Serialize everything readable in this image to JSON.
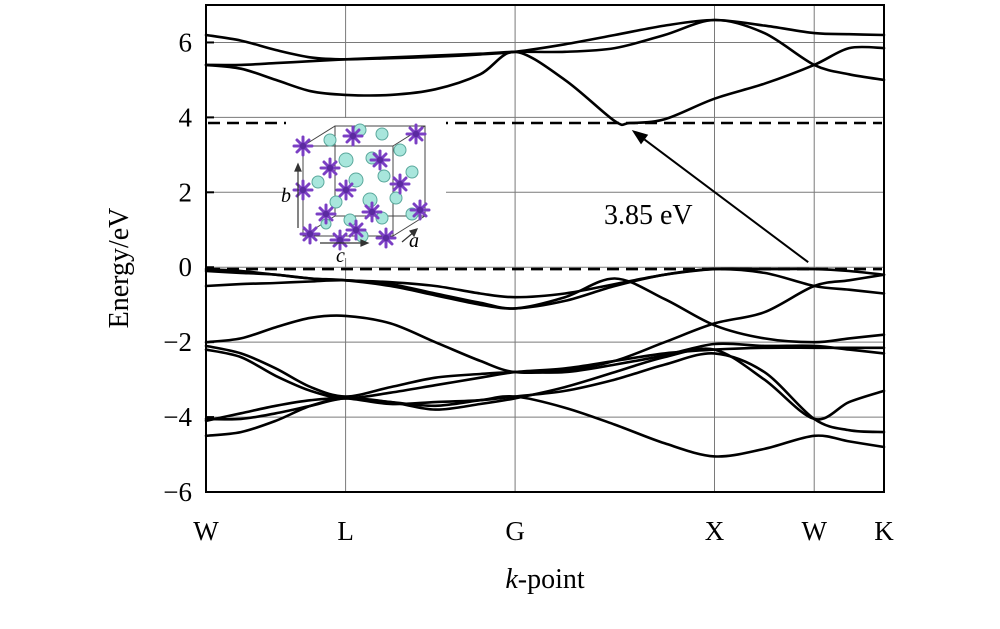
{
  "chart_data": {
    "type": "line",
    "xlabel_italic": "k",
    "xlabel_rest": "-point",
    "ylabel": "Energy/eV",
    "ylim": [
      -6,
      7
    ],
    "yticks": [
      -6,
      -4,
      -2,
      0,
      2,
      4,
      6
    ],
    "x_positions": [
      0,
      1.4,
      3.1,
      5.1,
      6.1,
      6.8
    ],
    "kpoint_labels": [
      "W",
      "L",
      "G",
      "X",
      "W",
      "K"
    ],
    "fermi_level": -0.05,
    "cbm_level": 3.85,
    "annotation": {
      "text": "3.85 eV",
      "from": [
        6.1,
        0
      ],
      "to": [
        4.25,
        3.85
      ]
    },
    "inset": {
      "axis_labels": [
        "b",
        "c",
        "a"
      ]
    },
    "series": [
      {
        "x": [
          0,
          0.35,
          0.7,
          1.05,
          1.4,
          1.85,
          2.3,
          2.75,
          3.1,
          3.6,
          4.1,
          4.6,
          5.1,
          5.6,
          6.1,
          6.45,
          6.8
        ],
        "y": [
          6.2,
          6.05,
          5.8,
          5.6,
          5.55,
          5.58,
          5.62,
          5.68,
          5.75,
          5.95,
          6.2,
          6.45,
          6.6,
          6.45,
          6.25,
          6.22,
          6.2
        ]
      },
      {
        "x": [
          0,
          0.35,
          0.7,
          1.05,
          1.4,
          1.85,
          2.3,
          2.75,
          3.1,
          3.6,
          4.1,
          4.6,
          5.1,
          5.6,
          6.1,
          6.45,
          6.8
        ],
        "y": [
          5.4,
          5.4,
          5.45,
          5.5,
          5.55,
          5.6,
          5.65,
          5.7,
          5.75,
          5.75,
          5.85,
          6.2,
          6.6,
          6.25,
          5.4,
          5.15,
          5.0
        ]
      },
      {
        "x": [
          0,
          0.35,
          0.7,
          1.05,
          1.4,
          1.85,
          2.3,
          2.75,
          3.1,
          3.6,
          4.1,
          4.25,
          4.6,
          5.1,
          5.6,
          6.1,
          6.45,
          6.8
        ],
        "y": [
          5.4,
          5.3,
          5.0,
          4.7,
          4.6,
          4.6,
          4.75,
          5.15,
          5.75,
          5.0,
          3.9,
          3.85,
          3.95,
          4.5,
          4.9,
          5.4,
          5.85,
          5.85
        ]
      },
      {
        "x": [
          0,
          0.35,
          0.7,
          1.05,
          1.4,
          1.85,
          2.3,
          2.75,
          3.1,
          3.6,
          4.1,
          4.6,
          5.1,
          5.6,
          6.1,
          6.45,
          6.8
        ],
        "y": [
          -0.05,
          -0.1,
          -0.2,
          -0.3,
          -0.35,
          -0.4,
          -0.5,
          -0.7,
          -0.8,
          -0.7,
          -0.45,
          -0.2,
          -0.05,
          -0.05,
          -0.05,
          -0.1,
          -0.2
        ]
      },
      {
        "x": [
          0,
          0.35,
          0.7,
          1.05,
          1.4,
          1.85,
          2.3,
          2.75,
          3.1,
          3.6,
          4.1,
          4.6,
          5.1,
          5.6,
          6.1,
          6.45,
          6.8
        ],
        "y": [
          -0.1,
          -0.15,
          -0.2,
          -0.3,
          -0.35,
          -0.5,
          -0.75,
          -1.0,
          -1.1,
          -0.9,
          -0.5,
          -0.2,
          -0.05,
          -0.15,
          -0.5,
          -0.6,
          -0.7
        ]
      },
      {
        "x": [
          0,
          0.35,
          0.7,
          1.05,
          1.4,
          1.85,
          2.3,
          2.75,
          3.1,
          3.6,
          4.1,
          4.6,
          5.1,
          5.6,
          6.1,
          6.45,
          6.8
        ],
        "y": [
          -0.5,
          -0.45,
          -0.42,
          -0.38,
          -0.35,
          -0.45,
          -0.7,
          -0.95,
          -1.1,
          -0.8,
          -0.3,
          -0.85,
          -1.55,
          -1.9,
          -2.0,
          -1.9,
          -1.8
        ]
      },
      {
        "x": [
          0,
          0.35,
          0.7,
          1.05,
          1.4,
          1.85,
          2.3,
          2.75,
          3.1,
          3.6,
          4.1,
          4.6,
          5.1,
          5.6,
          6.1,
          6.45,
          6.8
        ],
        "y": [
          -2.0,
          -1.9,
          -1.6,
          -1.35,
          -1.3,
          -1.5,
          -2.0,
          -2.5,
          -2.8,
          -2.75,
          -2.5,
          -2.0,
          -1.5,
          -1.2,
          -0.5,
          -0.35,
          -0.2
        ]
      },
      {
        "x": [
          0,
          0.35,
          0.7,
          1.05,
          1.4,
          1.85,
          2.3,
          2.75,
          3.1,
          3.6,
          4.1,
          4.6,
          5.1,
          5.6,
          6.1,
          6.45,
          6.8
        ],
        "y": [
          -2.1,
          -2.3,
          -2.7,
          -3.2,
          -3.45,
          -3.2,
          -2.95,
          -2.85,
          -2.8,
          -2.8,
          -2.6,
          -2.35,
          -2.05,
          -2.1,
          -2.1,
          -2.2,
          -2.3
        ]
      },
      {
        "x": [
          0,
          0.35,
          0.7,
          1.05,
          1.4,
          1.85,
          2.3,
          2.75,
          3.1,
          3.6,
          4.1,
          4.6,
          5.1,
          5.6,
          6.1,
          6.45,
          6.8
        ],
        "y": [
          -2.2,
          -2.4,
          -2.9,
          -3.3,
          -3.5,
          -3.35,
          -3.15,
          -2.95,
          -2.8,
          -2.7,
          -2.5,
          -2.3,
          -2.2,
          -2.15,
          -2.15,
          -2.15,
          -2.15
        ]
      },
      {
        "x": [
          0,
          0.35,
          0.7,
          1.05,
          1.4,
          1.85,
          2.3,
          2.75,
          3.1,
          3.6,
          4.1,
          4.6,
          5.1,
          5.6,
          6.1,
          6.45,
          6.8
        ],
        "y": [
          -4.05,
          -4.05,
          -3.9,
          -3.7,
          -3.5,
          -3.6,
          -3.8,
          -3.65,
          -3.5,
          -3.2,
          -2.8,
          -2.4,
          -2.2,
          -3.0,
          -4.05,
          -3.6,
          -3.3
        ]
      },
      {
        "x": [
          0,
          0.35,
          0.7,
          1.05,
          1.4,
          1.85,
          2.3,
          2.75,
          3.1,
          3.6,
          4.1,
          4.6,
          5.1,
          5.6,
          6.1,
          6.45,
          6.8
        ],
        "y": [
          -4.1,
          -3.9,
          -3.7,
          -3.55,
          -3.5,
          -3.65,
          -3.6,
          -3.55,
          -3.45,
          -3.3,
          -3.0,
          -2.6,
          -2.3,
          -2.8,
          -4.05,
          -4.35,
          -4.4
        ]
      },
      {
        "x": [
          0,
          0.35,
          0.7,
          1.05,
          1.4,
          1.85,
          2.3,
          2.75,
          3.1,
          3.6,
          4.1,
          4.6,
          5.1,
          5.6,
          6.1,
          6.45,
          6.8
        ],
        "y": [
          -4.5,
          -4.4,
          -4.1,
          -3.7,
          -3.5,
          -3.6,
          -3.7,
          -3.55,
          -3.45,
          -3.75,
          -4.2,
          -4.7,
          -5.05,
          -4.85,
          -4.5,
          -4.65,
          -4.8
        ]
      }
    ]
  }
}
